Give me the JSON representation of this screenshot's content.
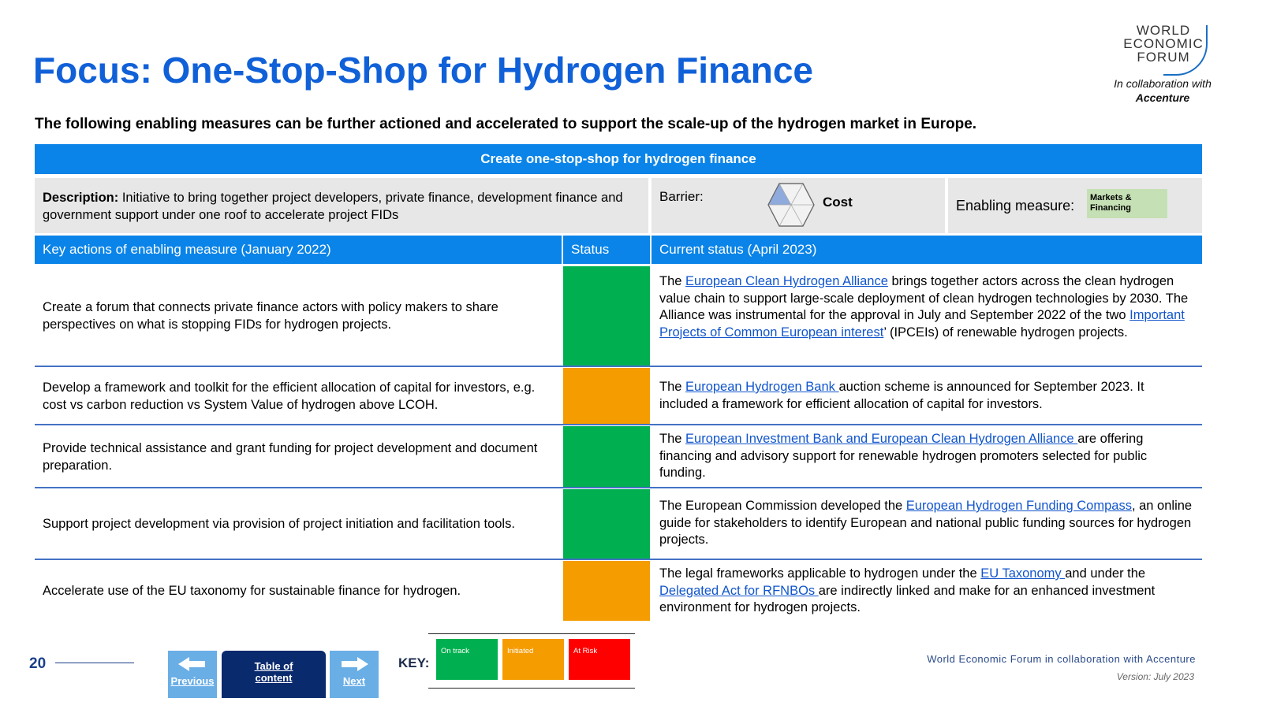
{
  "title": "Focus: One-Stop-Shop for Hydrogen Finance",
  "logo": {
    "lines": [
      "WORLD",
      "ECONOMIC",
      "FORUM"
    ]
  },
  "collab": {
    "line1": "In collaboration with",
    "line2": "Accenture"
  },
  "subtitle": "The following enabling measures can be further actioned and accelerated to support the scale-up of the hydrogen market in Europe.",
  "banner": "Create one-stop-shop for hydrogen finance",
  "description": {
    "label": "Description:",
    "text": " Initiative to bring together project developers, private finance, development finance and government support under one roof to accelerate project FIDs"
  },
  "barrier": {
    "label": "Barrier:",
    "value": "Cost"
  },
  "enabling": {
    "label": "Enabling measure:",
    "tag_line1": "Markets &",
    "tag_line2": "Financing",
    "tag_color": "#c5e0b4"
  },
  "headers": {
    "actions": "Key actions of enabling measure (January 2022)",
    "status": "Status",
    "current": "Current status (April 2023)"
  },
  "rows": [
    {
      "action": "Create a forum that connects private finance actors with policy makers to share perspectives on what is stopping FIDs for hydrogen projects.",
      "status": "green",
      "current": {
        "t1": "The ",
        "l1": "European Clean Hydrogen Alliance",
        "t2": " brings together actors across the clean hydrogen value chain to support large-scale deployment of clean hydrogen technologies by 2030. The Alliance was instrumental for the approval in July and September 2022 of the two ",
        "l2": "Important Projects of Common European interest",
        "t3": "’ (IPCEIs) of renewable hydrogen projects."
      }
    },
    {
      "action": "Develop a framework and toolkit for the efficient allocation of capital for investors, e.g. cost vs carbon reduction vs System Value of hydrogen above LCOH.",
      "status": "orange",
      "current": {
        "t1": "The ",
        "l1": "European Hydrogen Bank ",
        "t2": "auction scheme is announced for September 2023. It included a framework for efficient allocation of capital for investors."
      }
    },
    {
      "action": "Provide technical assistance and grant funding for project development and document preparation.",
      "status": "green",
      "current": {
        "t1": "The ",
        "l1": "European Investment Bank and European Clean Hydrogen Alliance ",
        "t2": "are offering financing and advisory support for renewable hydrogen promoters selected for public funding."
      }
    },
    {
      "action": "Support project development via provision of project initiation and facilitation tools.",
      "status": "green",
      "current": {
        "t1": "The European Commission developed the ",
        "l1": "European Hydrogen Funding Compass",
        "t2": ", an online guide for stakeholders to identify European and national public funding sources for hydrogen projects."
      }
    },
    {
      "action": "Accelerate use of the EU taxonomy for sustainable finance for hydrogen.",
      "status": "orange",
      "current": {
        "t1": "The legal frameworks applicable to hydrogen under the ",
        "l1": "EU Taxonomy ",
        "t2": "and under the ",
        "l2": "Delegated Act for RFNBOs ",
        "t3": "are indirectly linked and make for an enhanced investment environment for hydrogen projects."
      }
    }
  ],
  "footer": {
    "page_number": "20",
    "prev_label": "Previous",
    "toc_label_1": "Table of",
    "toc_label_2": "content",
    "next_label": "Next",
    "key_label": "KEY:",
    "key_on_track": "On track",
    "key_initiated": "Initiated",
    "key_at_risk": "At Risk",
    "credit": "World Economic Forum in collaboration with Accenture",
    "version": "Version: July 2023"
  },
  "colors": {
    "title": "#1060d8",
    "banner": "#0a84e8",
    "green": "#00b050",
    "orange": "#f59c00",
    "red": "#fe0000"
  },
  "icons": [
    "hexagon-barrier-icon",
    "arrow-left-icon",
    "arrow-right-icon"
  ]
}
